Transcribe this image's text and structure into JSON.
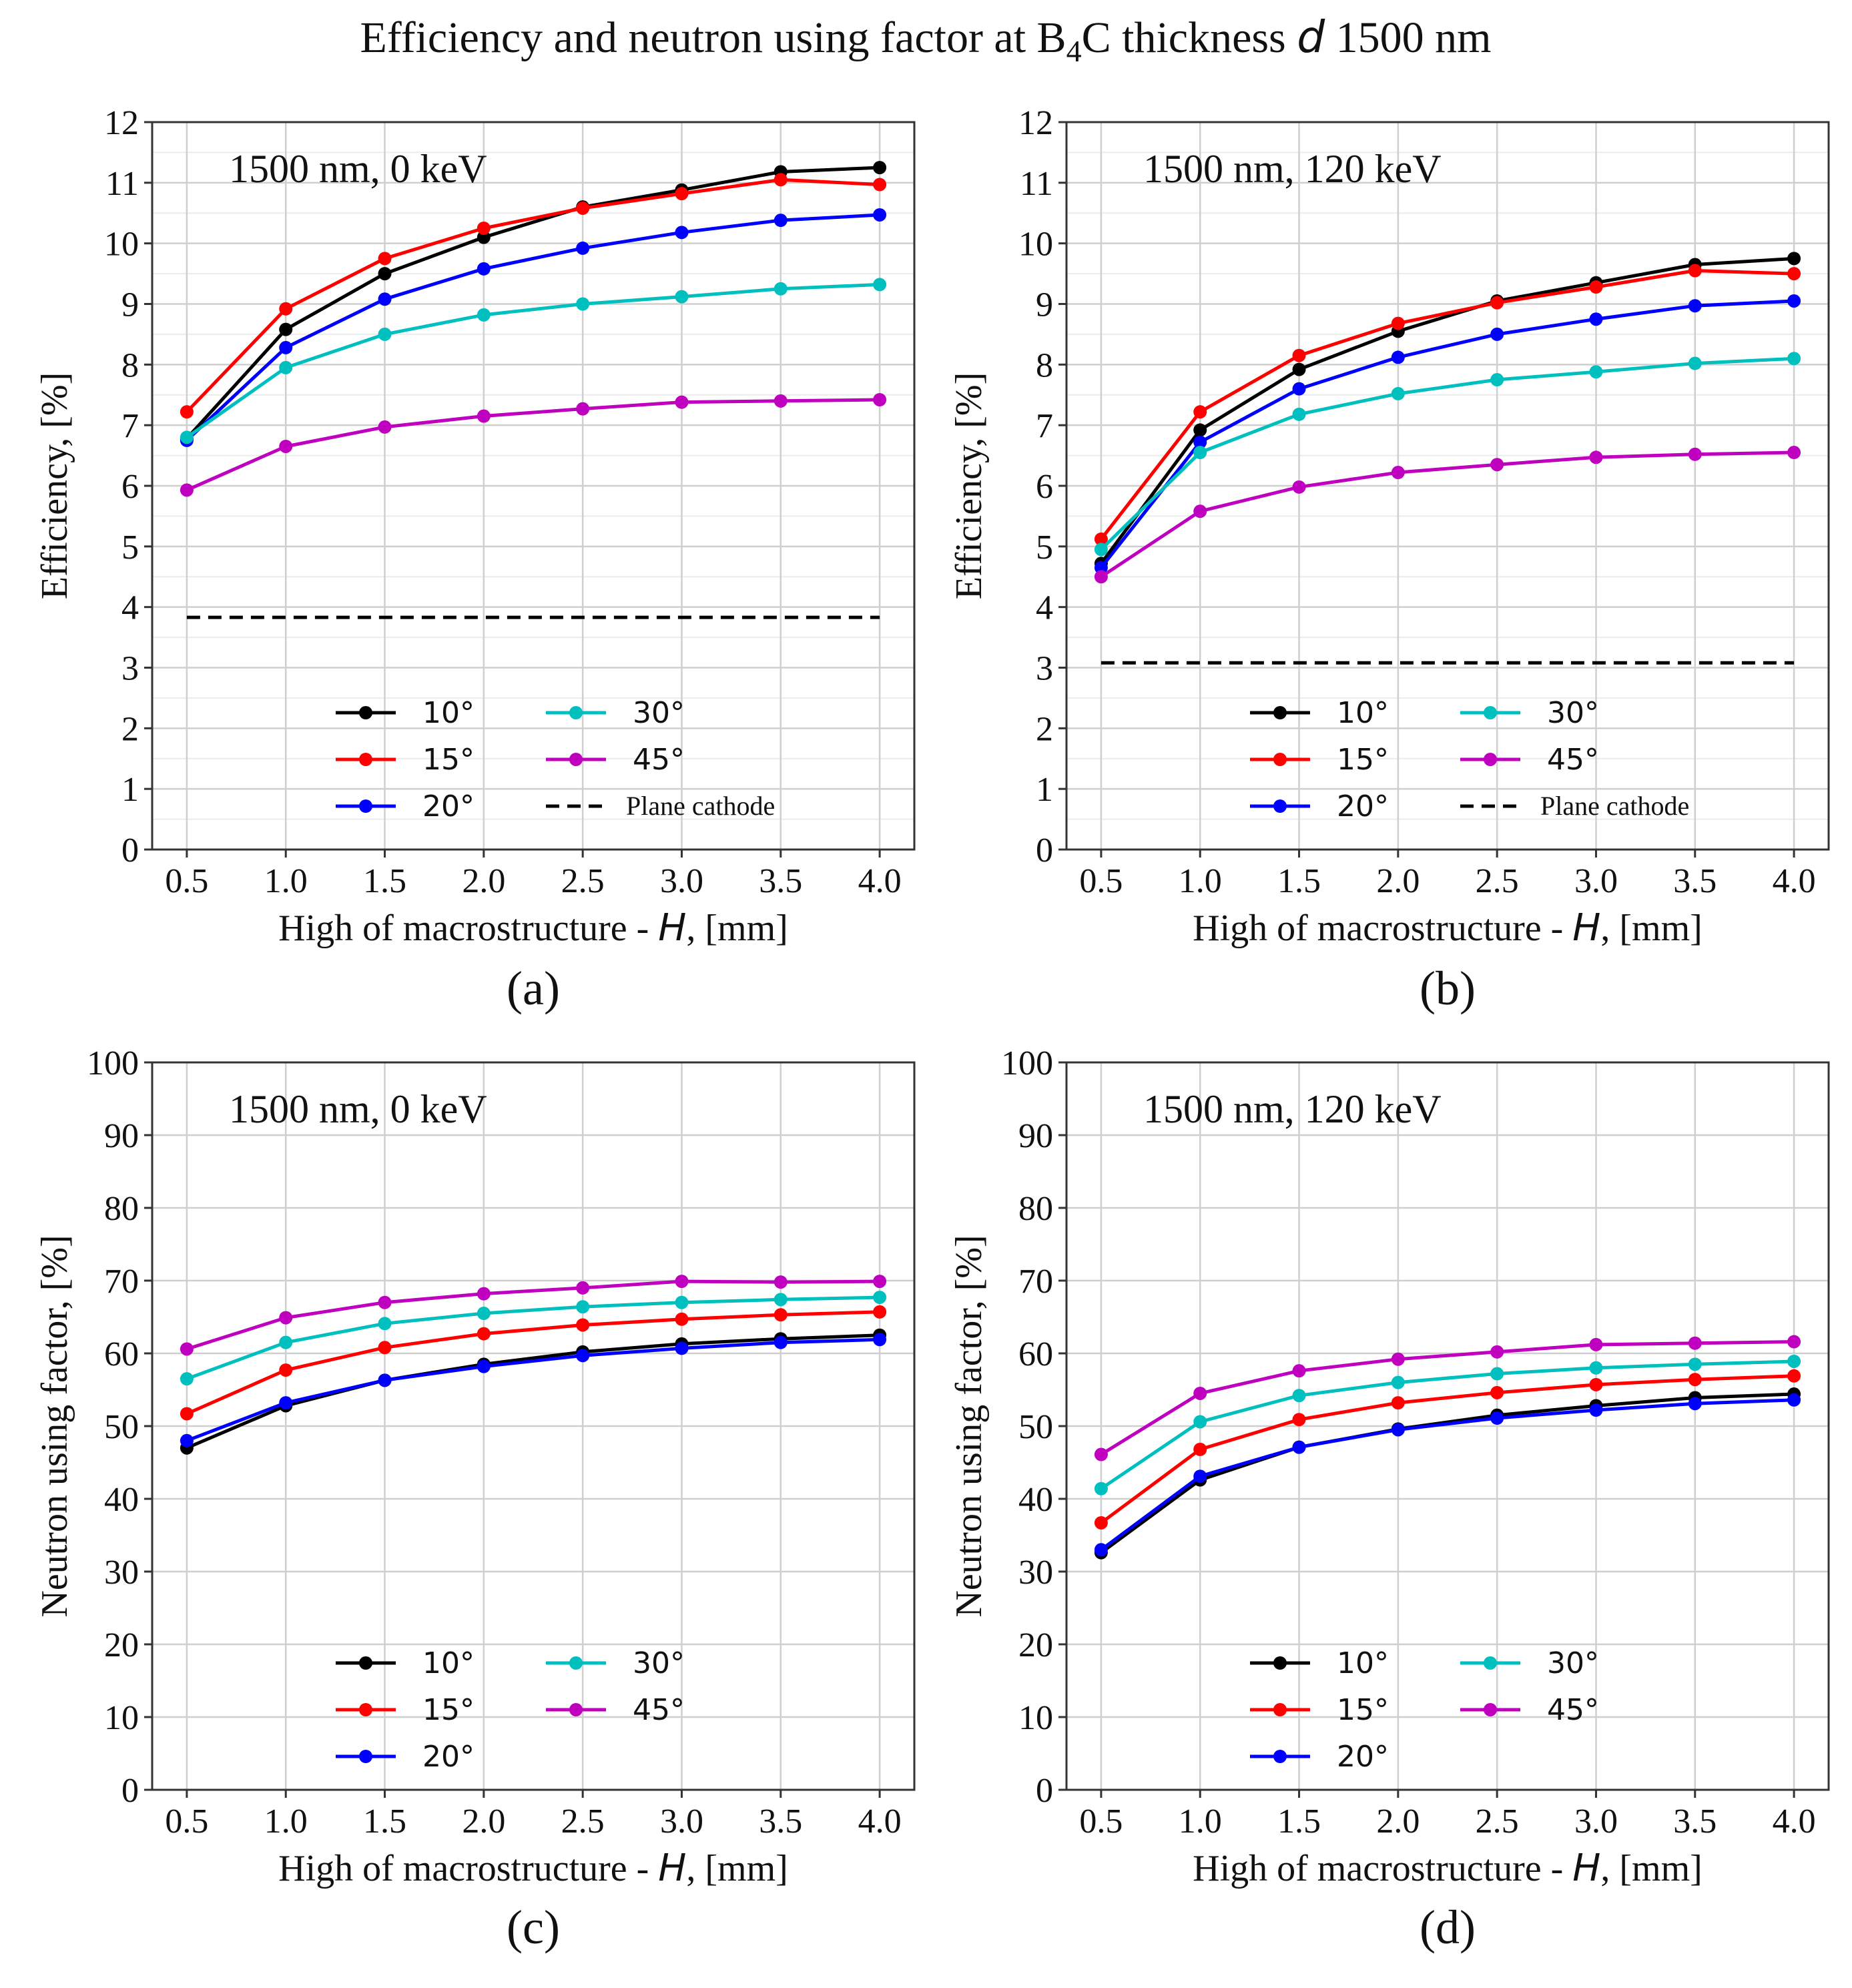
{
  "figure": {
    "title_main": "Efficiency and neutron using factor at B",
    "title_sub": "4",
    "title_rest": "C thickness ",
    "title_var": "d",
    "title_end": " 1500 nm"
  },
  "style": {
    "series_colors": {
      "10°": "#000000",
      "15°": "#ff0000",
      "20°": "#0000ff",
      "30°": "#00bfbf",
      "45°": "#bf00bf"
    },
    "plane_color": "#000000",
    "grid_color": "#cfcfcf",
    "axes_color": "#333333"
  },
  "chart_data": [
    {
      "id": "a",
      "type": "line",
      "panel_label": "(a)",
      "annotation": "1500 nm, 0 keV",
      "xlabel_pre": "High of macrostructure - ",
      "xlabel_var": "H",
      "xlabel_post": ", [mm]",
      "ylabel": "Efficiency, [%]",
      "x": [
        0.5,
        1.0,
        1.5,
        2.0,
        2.5,
        3.0,
        3.5,
        4.0
      ],
      "xticks": [
        "0.5",
        "1.0",
        "1.5",
        "2.0",
        "2.5",
        "3.0",
        "3.5",
        "4.0"
      ],
      "ylim": [
        0,
        12
      ],
      "yticks": [
        0,
        1,
        2,
        3,
        4,
        5,
        6,
        7,
        8,
        9,
        10,
        11,
        12
      ],
      "ytick_labels": [
        "0",
        "1",
        "2",
        "3",
        "4",
        "5",
        "6",
        "7",
        "8",
        "9",
        "10",
        "11",
        "12"
      ],
      "minor_grid": true,
      "series": [
        {
          "name": "10°",
          "values": [
            6.78,
            8.58,
            9.5,
            10.1,
            10.6,
            10.88,
            11.18,
            11.25
          ]
        },
        {
          "name": "15°",
          "values": [
            7.22,
            8.92,
            9.75,
            10.25,
            10.58,
            10.82,
            11.05,
            10.97
          ]
        },
        {
          "name": "20°",
          "values": [
            6.75,
            8.28,
            9.08,
            9.58,
            9.92,
            10.18,
            10.38,
            10.47
          ]
        },
        {
          "name": "30°",
          "values": [
            6.8,
            7.95,
            8.5,
            8.82,
            9.0,
            9.12,
            9.25,
            9.32
          ]
        },
        {
          "name": "45°",
          "values": [
            5.93,
            6.65,
            6.97,
            7.15,
            7.27,
            7.38,
            7.4,
            7.42
          ]
        }
      ],
      "plane_cathode": {
        "label": "Plane cathode",
        "value": 3.83
      },
      "legend_entries": [
        "10°",
        "30°",
        "15°",
        "45°",
        "20°",
        "Plane cathode"
      ]
    },
    {
      "id": "b",
      "type": "line",
      "panel_label": "(b)",
      "annotation": "1500 nm, 120 keV",
      "xlabel_pre": "High of macrostructure - ",
      "xlabel_var": "H",
      "xlabel_post": ", [mm]",
      "ylabel": "Efficiency, [%]",
      "x": [
        0.5,
        1.0,
        1.5,
        2.0,
        2.5,
        3.0,
        3.5,
        4.0
      ],
      "xticks": [
        "0.5",
        "1.0",
        "1.5",
        "2.0",
        "2.5",
        "3.0",
        "3.5",
        "4.0"
      ],
      "ylim": [
        0,
        12
      ],
      "yticks": [
        0,
        1,
        2,
        3,
        4,
        5,
        6,
        7,
        8,
        9,
        10,
        11,
        12
      ],
      "ytick_labels": [
        "0",
        "1",
        "2",
        "3",
        "4",
        "5",
        "6",
        "7",
        "8",
        "9",
        "10",
        "11",
        "12"
      ],
      "minor_grid": true,
      "series": [
        {
          "name": "10°",
          "values": [
            4.72,
            6.92,
            7.92,
            8.55,
            9.05,
            9.35,
            9.65,
            9.75
          ]
        },
        {
          "name": "15°",
          "values": [
            5.12,
            7.22,
            8.15,
            8.68,
            9.02,
            9.28,
            9.55,
            9.5
          ]
        },
        {
          "name": "20°",
          "values": [
            4.65,
            6.72,
            7.6,
            8.12,
            8.5,
            8.75,
            8.97,
            9.05
          ]
        },
        {
          "name": "30°",
          "values": [
            4.95,
            6.55,
            7.18,
            7.52,
            7.75,
            7.88,
            8.02,
            8.1
          ]
        },
        {
          "name": "45°",
          "values": [
            4.5,
            5.58,
            5.98,
            6.22,
            6.35,
            6.47,
            6.52,
            6.55
          ]
        }
      ],
      "plane_cathode": {
        "label": "Plane cathode",
        "value": 3.08
      },
      "legend_entries": [
        "10°",
        "30°",
        "15°",
        "45°",
        "20°",
        "Plane cathode"
      ]
    },
    {
      "id": "c",
      "type": "line",
      "panel_label": "(c)",
      "annotation": "1500 nm, 0 keV",
      "xlabel_pre": "High of macrostructure - ",
      "xlabel_var": "H",
      "xlabel_post": ", [mm]",
      "ylabel": "Neutron using factor, [%]",
      "x": [
        0.5,
        1.0,
        1.5,
        2.0,
        2.5,
        3.0,
        3.5,
        4.0
      ],
      "xticks": [
        "0.5",
        "1.0",
        "1.5",
        "2.0",
        "2.5",
        "3.0",
        "3.5",
        "4.0"
      ],
      "ylim": [
        0,
        100
      ],
      "yticks": [
        0,
        10,
        20,
        30,
        40,
        50,
        60,
        70,
        80,
        90,
        100
      ],
      "ytick_labels": [
        "0",
        "10",
        "20",
        "30",
        "40",
        "50",
        "60",
        "70",
        "80",
        "90",
        "100"
      ],
      "minor_grid": false,
      "series": [
        {
          "name": "10°",
          "values": [
            47.0,
            52.8,
            56.3,
            58.5,
            60.2,
            61.3,
            62.0,
            62.5
          ]
        },
        {
          "name": "15°",
          "values": [
            51.7,
            57.7,
            60.8,
            62.7,
            63.9,
            64.7,
            65.3,
            65.7
          ]
        },
        {
          "name": "20°",
          "values": [
            48.0,
            53.2,
            56.3,
            58.2,
            59.7,
            60.7,
            61.5,
            61.9
          ]
        },
        {
          "name": "30°",
          "values": [
            56.5,
            61.5,
            64.1,
            65.5,
            66.4,
            67.0,
            67.4,
            67.7
          ]
        },
        {
          "name": "45°",
          "values": [
            60.6,
            64.9,
            67.0,
            68.2,
            69.0,
            69.9,
            69.8,
            69.9
          ]
        }
      ],
      "legend_entries": [
        "10°",
        "30°",
        "15°",
        "45°",
        "20°"
      ]
    },
    {
      "id": "d",
      "type": "line",
      "panel_label": "(d)",
      "annotation": "1500 nm, 120 keV",
      "xlabel_pre": "High of macrostructure - ",
      "xlabel_var": "H",
      "xlabel_post": ", [mm]",
      "ylabel": "Neutron using factor, [%]",
      "x": [
        0.5,
        1.0,
        1.5,
        2.0,
        2.5,
        3.0,
        3.5,
        4.0
      ],
      "xticks": [
        "0.5",
        "1.0",
        "1.5",
        "2.0",
        "2.5",
        "3.0",
        "3.5",
        "4.0"
      ],
      "ylim": [
        0,
        100
      ],
      "yticks": [
        0,
        10,
        20,
        30,
        40,
        50,
        60,
        70,
        80,
        90,
        100
      ],
      "ytick_labels": [
        "0",
        "10",
        "20",
        "30",
        "40",
        "50",
        "60",
        "70",
        "80",
        "90",
        "100"
      ],
      "minor_grid": false,
      "series": [
        {
          "name": "10°",
          "values": [
            32.6,
            42.6,
            47.1,
            49.6,
            51.5,
            52.8,
            53.9,
            54.4
          ]
        },
        {
          "name": "15°",
          "values": [
            36.7,
            46.8,
            50.9,
            53.2,
            54.6,
            55.7,
            56.4,
            56.9
          ]
        },
        {
          "name": "20°",
          "values": [
            33.0,
            43.1,
            47.1,
            49.5,
            51.1,
            52.2,
            53.1,
            53.6
          ]
        },
        {
          "name": "30°",
          "values": [
            41.4,
            50.6,
            54.2,
            56.0,
            57.2,
            58.0,
            58.5,
            58.9
          ]
        },
        {
          "name": "45°",
          "values": [
            46.1,
            54.5,
            57.6,
            59.2,
            60.2,
            61.2,
            61.4,
            61.6
          ]
        }
      ],
      "legend_entries": [
        "10°",
        "30°",
        "15°",
        "45°",
        "20°"
      ]
    }
  ]
}
